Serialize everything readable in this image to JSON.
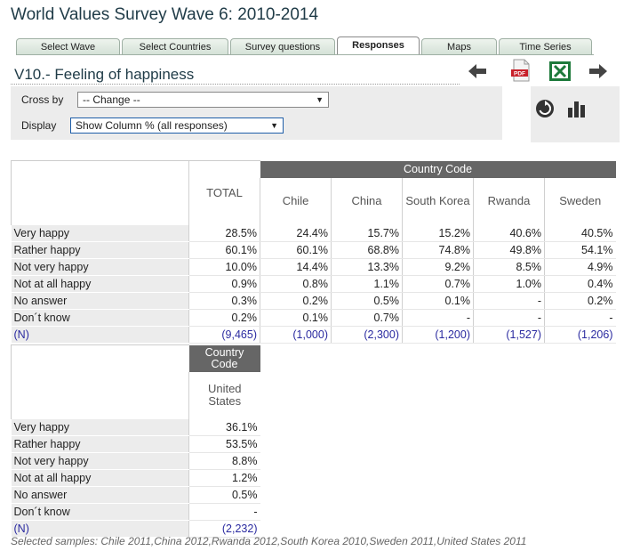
{
  "header": {
    "title": "World Values Survey Wave 6: 2010-2014"
  },
  "tabs": [
    {
      "label": "Select Wave",
      "active": false
    },
    {
      "label": "Select Countries",
      "active": false
    },
    {
      "label": "Survey questions",
      "active": false
    },
    {
      "label": "Responses",
      "active": true
    },
    {
      "label": "Maps",
      "active": false
    },
    {
      "label": "Time Series",
      "active": false
    }
  ],
  "section": {
    "title": "V10.- Feeling of happiness"
  },
  "controls": {
    "cross_by_label": "Cross by",
    "cross_by_value": "-- Change --",
    "display_label": "Display",
    "display_value": "Show Column % (all responses)"
  },
  "toolbar": {
    "pdf_label": "PDF",
    "icons": [
      "back-arrow-icon",
      "pdf-icon",
      "excel-icon",
      "forward-arrow-icon",
      "refresh-icon",
      "bar-chart-icon"
    ]
  },
  "table1": {
    "group_header": "Country Code",
    "total_header": "TOTAL",
    "columns": [
      "Chile",
      "China",
      "South Korea",
      "Rwanda",
      "Sweden"
    ],
    "rows": [
      {
        "label": "Very happy",
        "total": "28.5%",
        "values": [
          "24.4%",
          "15.7%",
          "15.2%",
          "40.6%",
          "40.5%"
        ]
      },
      {
        "label": "Rather happy",
        "total": "60.1%",
        "values": [
          "60.1%",
          "68.8%",
          "74.8%",
          "49.8%",
          "54.1%"
        ]
      },
      {
        "label": "Not very happy",
        "total": "10.0%",
        "values": [
          "14.4%",
          "13.3%",
          "9.2%",
          "8.5%",
          "4.9%"
        ]
      },
      {
        "label": "Not at all happy",
        "total": "0.9%",
        "values": [
          "0.8%",
          "1.1%",
          "0.7%",
          "1.0%",
          "0.4%"
        ]
      },
      {
        "label": "No answer",
        "total": "0.3%",
        "values": [
          "0.2%",
          "0.5%",
          "0.1%",
          "-",
          "0.2%"
        ]
      },
      {
        "label": "Don´t know",
        "total": "0.2%",
        "values": [
          "0.1%",
          "0.7%",
          "-",
          "-",
          "-"
        ]
      },
      {
        "label": "(N)",
        "total": "(9,465)",
        "values": [
          "(1,000)",
          "(2,300)",
          "(1,200)",
          "(1,527)",
          "(1,206)"
        ]
      }
    ]
  },
  "table2": {
    "group_header": "Country Code",
    "columns": [
      "United States"
    ],
    "rows": [
      {
        "label": "Very happy",
        "values": [
          "36.1%"
        ]
      },
      {
        "label": "Rather happy",
        "values": [
          "53.5%"
        ]
      },
      {
        "label": "Not very happy",
        "values": [
          "8.8%"
        ]
      },
      {
        "label": "Not at all happy",
        "values": [
          "1.2%"
        ]
      },
      {
        "label": "No answer",
        "values": [
          "0.5%"
        ]
      },
      {
        "label": "Don´t know",
        "values": [
          "-"
        ]
      },
      {
        "label": "(N)",
        "values": [
          "(2,232)"
        ]
      }
    ]
  },
  "footnote": "Selected samples: Chile 2011,China 2012,Rwanda 2012,South Korea 2010,Sweden 2011,United States 2011"
}
